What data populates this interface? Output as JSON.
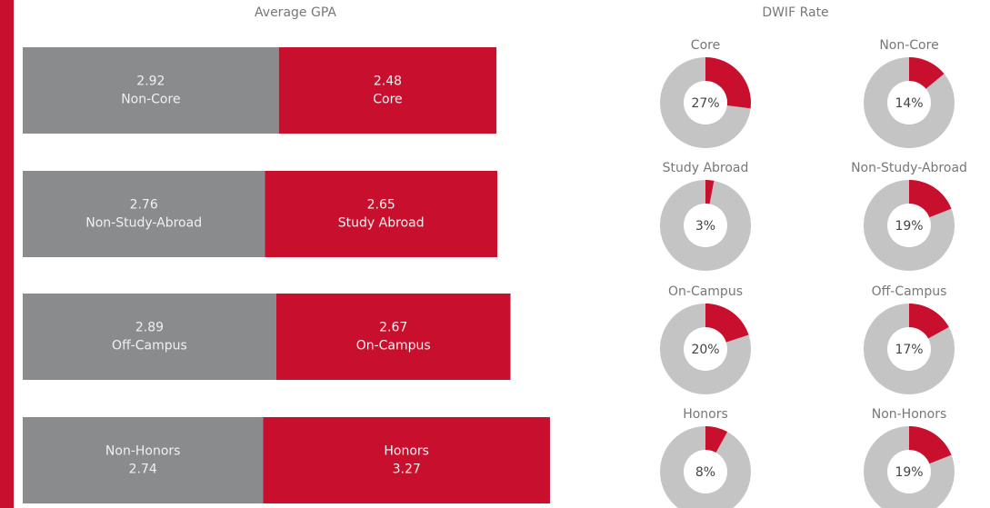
{
  "chart_data": [
    {
      "type": "stacked-bar",
      "title": "Average GPA",
      "bars": [
        {
          "segments": [
            {
              "name": "Non-Core",
              "value": 2.92,
              "color": "#898b8d"
            },
            {
              "name": "Core",
              "value": 2.48,
              "color": "#c8102e"
            }
          ]
        },
        {
          "segments": [
            {
              "name": "Non-Study-Abroad",
              "value": 2.76,
              "color": "#898b8d"
            },
            {
              "name": "Study Abroad",
              "value": 2.65,
              "color": "#c8102e"
            }
          ]
        },
        {
          "segments": [
            {
              "name": "Off-Campus",
              "value": 2.89,
              "color": "#898b8d"
            },
            {
              "name": "On-Campus",
              "value": 2.67,
              "color": "#c8102e"
            }
          ]
        },
        {
          "name_first": true,
          "segments": [
            {
              "name": "Non-Honors",
              "value": 2.74,
              "color": "#898b8d"
            },
            {
              "name": "Honors",
              "value": 3.27,
              "color": "#c8102e"
            }
          ]
        }
      ]
    },
    {
      "type": "pie",
      "title": "DWIF Rate",
      "color": "#c8102e",
      "rest_color": "#c4c4c4",
      "panels": [
        {
          "name": "Core",
          "value": 27,
          "value_label": "27%"
        },
        {
          "name": "Non-Core",
          "value": 14,
          "value_label": "14%"
        },
        {
          "name": "Study Abroad",
          "value": 3,
          "value_label": "3%"
        },
        {
          "name": "Non-Study-Abroad",
          "value": 19,
          "value_label": "19%"
        },
        {
          "name": "On-Campus",
          "value": 20,
          "value_label": "20%"
        },
        {
          "name": "Off-Campus",
          "value": 17,
          "value_label": "17%"
        },
        {
          "name": "Honors",
          "value": 8,
          "value_label": "8%"
        },
        {
          "name": "Non-Honors",
          "value": 19,
          "value_label": "19%"
        }
      ]
    }
  ]
}
